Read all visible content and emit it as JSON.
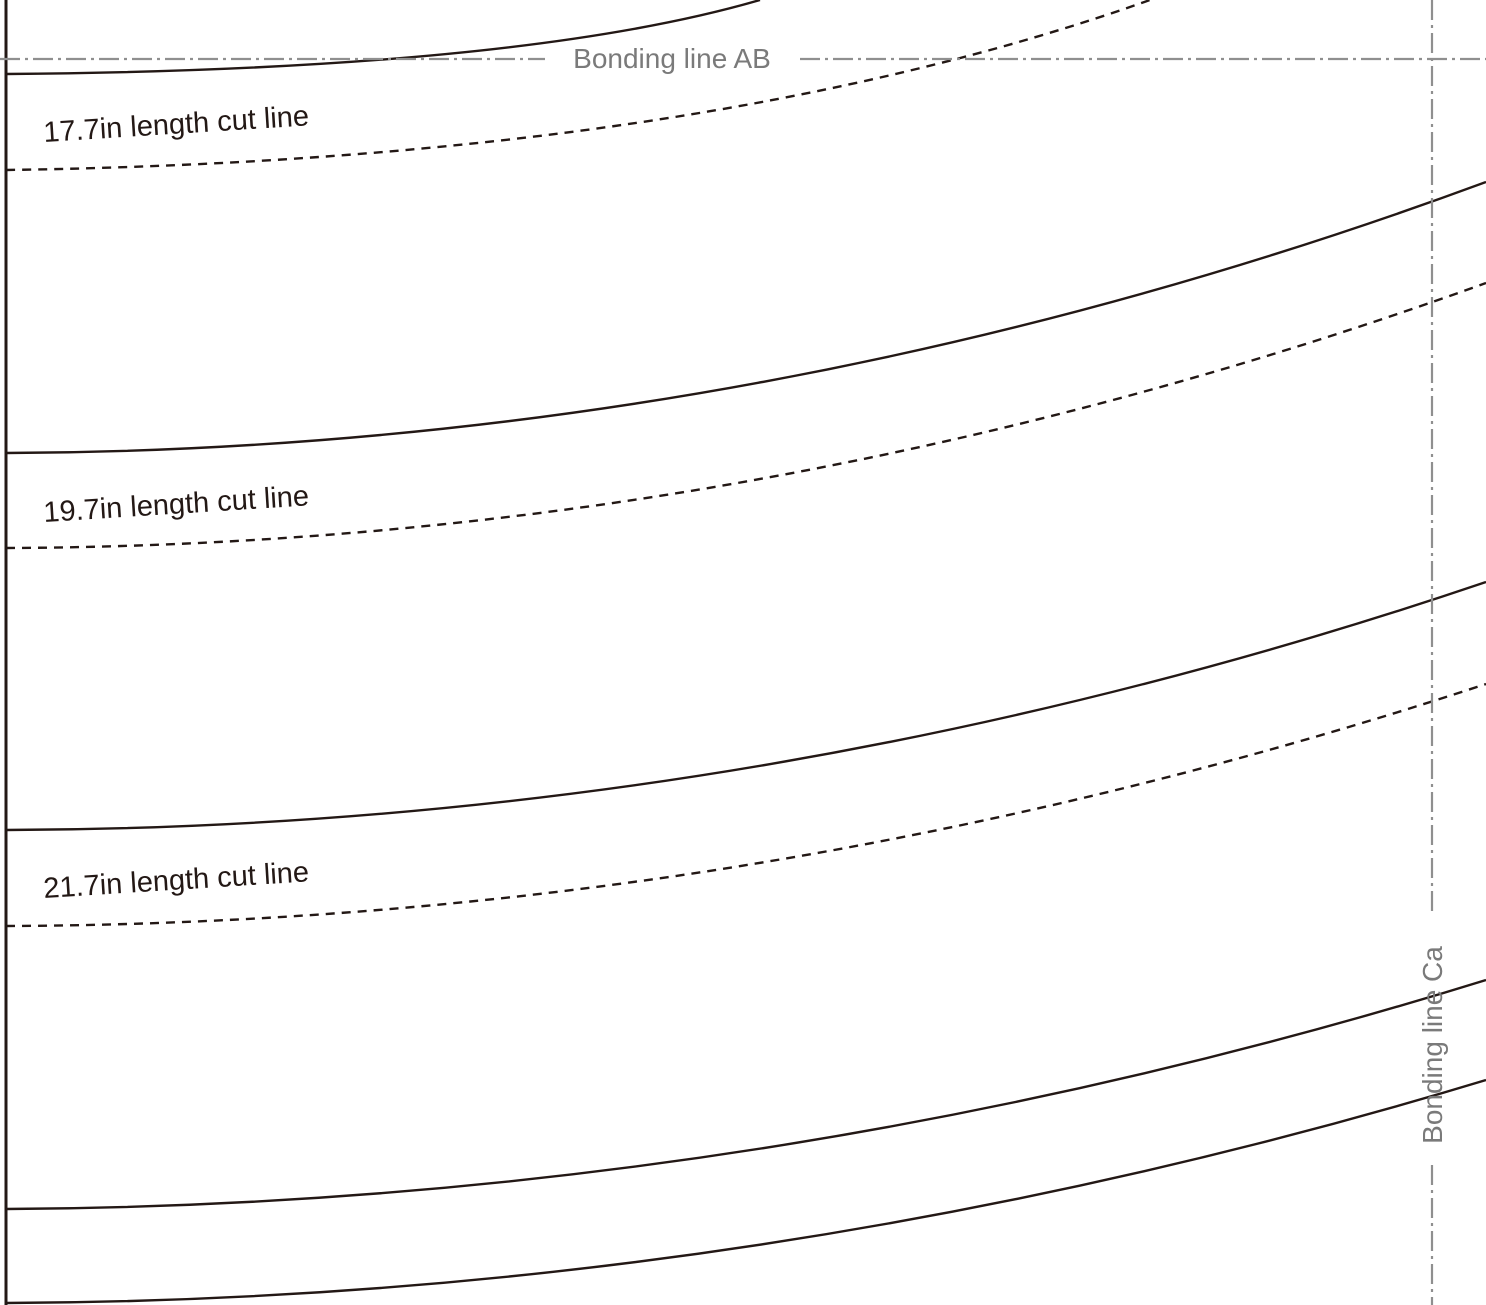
{
  "bonding_lines": {
    "horizontal_label": "Bonding line AB",
    "vertical_label": "Bonding line Ca"
  },
  "cut_lines": [
    {
      "label": "17.7in length cut line"
    },
    {
      "label": "19.7in length cut line"
    },
    {
      "label": "21.7in length cut line"
    }
  ],
  "colors": {
    "line": "#231815",
    "bonding_line": "#8f8f8f",
    "bonding_text": "#7a7a7a",
    "background": "#ffffff"
  }
}
